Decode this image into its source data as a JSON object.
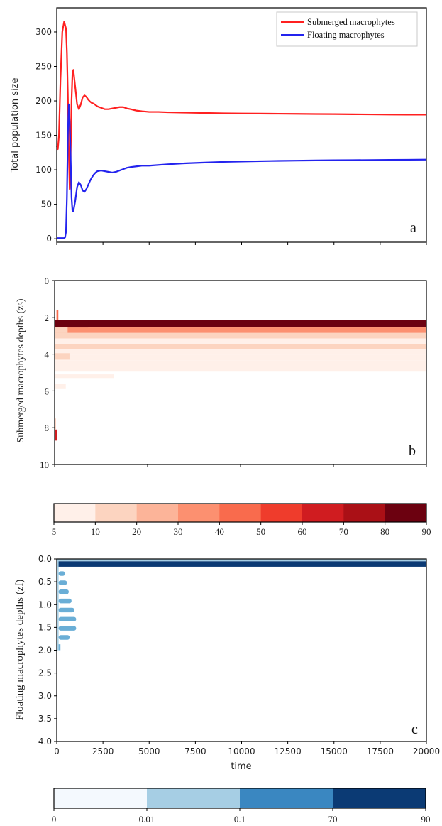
{
  "chart_data": [
    {
      "id": "a",
      "type": "line",
      "panel_label": "a",
      "ylabel": "Total population size",
      "ylim": [
        -5,
        335
      ],
      "yticks": [
        0,
        50,
        100,
        150,
        200,
        250,
        300
      ],
      "xlim": [
        0,
        20000
      ],
      "xticks_unlabeled": [
        0,
        2500,
        5000,
        7500,
        10000,
        12500,
        15000,
        17500,
        20000
      ],
      "legend_position": "top-right",
      "series": [
        {
          "name": "Submerged macrophytes",
          "color": "#ff2020",
          "x": [
            0,
            60,
            120,
            200,
            300,
            400,
            500,
            550,
            600,
            650,
            700,
            750,
            800,
            850,
            900,
            1000,
            1100,
            1200,
            1300,
            1400,
            1500,
            1600,
            1700,
            1800,
            1900,
            2000,
            2100,
            2200,
            2400,
            2600,
            2800,
            3000,
            3200,
            3400,
            3600,
            3800,
            4000,
            4300,
            4600,
            5000,
            5500,
            6000,
            7000,
            8000,
            9000,
            10000,
            11000,
            12000,
            13000,
            14000,
            15000,
            16000,
            17000,
            18000,
            19000,
            20000
          ],
          "y": [
            135,
            130,
            150,
            230,
            300,
            315,
            305,
            270,
            210,
            130,
            72,
            120,
            200,
            240,
            245,
            220,
            195,
            188,
            195,
            205,
            208,
            206,
            202,
            199,
            197,
            196,
            194,
            192,
            190,
            188,
            188,
            189,
            190,
            191,
            191,
            189,
            188,
            186,
            185,
            184,
            184,
            183.5,
            183,
            182.5,
            182,
            181.8,
            181.6,
            181.4,
            181.2,
            181,
            180.8,
            180.6,
            180.4,
            180.2,
            180.1,
            180
          ]
        },
        {
          "name": "Floating macrophytes",
          "color": "#2323ee",
          "x": [
            0,
            200,
            400,
            450,
            500,
            550,
            600,
            650,
            700,
            750,
            800,
            850,
            900,
            1000,
            1100,
            1200,
            1300,
            1400,
            1500,
            1600,
            1700,
            1800,
            1900,
            2000,
            2100,
            2200,
            2400,
            2600,
            2800,
            3000,
            3200,
            3400,
            3600,
            3800,
            4000,
            4300,
            4600,
            5000,
            6000,
            7000,
            8000,
            9000,
            10000,
            11000,
            12000,
            13000,
            14000,
            15000,
            16000,
            17000,
            18000,
            19000,
            20000
          ],
          "y": [
            1,
            1,
            1,
            2,
            10,
            60,
            150,
            195,
            170,
            120,
            60,
            40,
            40,
            55,
            75,
            82,
            78,
            70,
            68,
            72,
            78,
            84,
            89,
            93,
            96,
            98,
            99,
            98,
            97,
            96,
            97,
            99,
            101,
            103,
            104,
            105,
            106,
            106,
            108,
            109.5,
            110.5,
            111.5,
            112,
            112.5,
            113,
            113.3,
            113.6,
            113.9,
            114,
            114.2,
            114.4,
            114.6,
            114.8
          ]
        }
      ]
    },
    {
      "id": "b",
      "type": "heatmap",
      "panel_label": "b",
      "ylabel": "Submerged macrophytes depths (zs)",
      "ylim": [
        10,
        0
      ],
      "yticks": [
        0,
        2,
        4,
        6,
        8,
        10
      ],
      "xlim": [
        0,
        20000
      ],
      "xticks_unlabeled": [
        0,
        2500,
        5000,
        7500,
        10000,
        12500,
        15000,
        17500,
        20000
      ],
      "colormap": "Reds",
      "bands": [
        {
          "z0": 2.15,
          "z1": 2.55,
          "x0": 0,
          "x1": 20000,
          "value": 88
        },
        {
          "z0": 2.55,
          "z1": 2.85,
          "x0": 0,
          "x1": 20000,
          "value": 36
        },
        {
          "z0": 2.85,
          "z1": 3.15,
          "x0": 0,
          "x1": 20000,
          "value": 11
        },
        {
          "z0": 3.15,
          "z1": 3.45,
          "x0": 0,
          "x1": 20000,
          "value": 9
        },
        {
          "z0": 3.45,
          "z1": 3.75,
          "x0": 0,
          "x1": 20000,
          "value": 14
        },
        {
          "z0": 3.75,
          "z1": 4.05,
          "x0": 0,
          "x1": 20000,
          "value": 7.5
        },
        {
          "z0": 4.05,
          "z1": 4.35,
          "x0": 0,
          "x1": 20000,
          "value": 6
        },
        {
          "z0": 4.35,
          "z1": 4.65,
          "x0": 0,
          "x1": 20000,
          "value": 8
        },
        {
          "z0": 4.65,
          "z1": 4.95,
          "x0": 0,
          "x1": 20000,
          "value": 6.5
        },
        {
          "z0": 2.15,
          "z1": 2.55,
          "x0": 0,
          "x1": 1800,
          "value": 95
        },
        {
          "z0": 2.55,
          "z1": 2.85,
          "x0": 0,
          "x1": 700,
          "value": 18
        },
        {
          "z0": 3.95,
          "z1": 4.3,
          "x0": 0,
          "x1": 800,
          "value": 12
        },
        {
          "z0": 5.1,
          "z1": 5.3,
          "x0": 0,
          "x1": 3200,
          "value": 6
        },
        {
          "z0": 5.6,
          "z1": 5.9,
          "x0": 0,
          "x1": 600,
          "value": 6
        },
        {
          "z0": 1.6,
          "z1": 2.15,
          "x0": 100,
          "x1": 200,
          "value": 40
        },
        {
          "z0": 8.1,
          "z1": 8.7,
          "x0": 0,
          "x1": 120,
          "value": 68
        },
        {
          "z0": 7.5,
          "z1": 8.1,
          "x0": 0,
          "x1": 60,
          "value": 20
        }
      ]
    },
    {
      "id": "c",
      "type": "heatmap",
      "panel_label": "c",
      "ylabel": "Floating macrophytes depths (zf)",
      "xlabel": "time",
      "ylim": [
        4.0,
        0.0
      ],
      "yticks": [
        0.0,
        0.5,
        1.0,
        1.5,
        2.0,
        2.5,
        3.0,
        3.5,
        4.0
      ],
      "ytick_labels": [
        "0.0",
        "0.5",
        "1.0",
        "1.5",
        "2.0",
        "2.5",
        "3.0",
        "3.5",
        "4.0"
      ],
      "xlim": [
        0,
        20000
      ],
      "xticks": [
        0,
        2500,
        5000,
        7500,
        10000,
        12500,
        15000,
        17500,
        20000
      ],
      "colormap": "Blues",
      "bands": [
        {
          "z0": 0.05,
          "z1": 0.17,
          "x0": 0,
          "x1": 20000,
          "value": 80
        },
        {
          "z0": 0.0,
          "z1": 0.05,
          "x0": 0,
          "x1": 20000,
          "value": 0.05
        },
        {
          "z0": 0.27,
          "z1": 0.37,
          "x0": 100,
          "x1": 450,
          "value": 0.05
        },
        {
          "z0": 0.47,
          "z1": 0.57,
          "x0": 100,
          "x1": 550,
          "value": 0.05
        },
        {
          "z0": 0.67,
          "z1": 0.77,
          "x0": 100,
          "x1": 650,
          "value": 0.05
        },
        {
          "z0": 0.87,
          "z1": 0.97,
          "x0": 100,
          "x1": 800,
          "value": 0.05
        },
        {
          "z0": 1.07,
          "z1": 1.17,
          "x0": 100,
          "x1": 950,
          "value": 0.05
        },
        {
          "z0": 1.27,
          "z1": 1.37,
          "x0": 100,
          "x1": 1050,
          "value": 0.05
        },
        {
          "z0": 1.47,
          "z1": 1.57,
          "x0": 100,
          "x1": 1050,
          "value": 0.05
        },
        {
          "z0": 1.67,
          "z1": 1.77,
          "x0": 100,
          "x1": 700,
          "value": 0.05
        },
        {
          "z0": 1.87,
          "z1": 2.0,
          "x0": 100,
          "x1": 200,
          "value": 0.05
        },
        {
          "z0": 0.0,
          "z1": 2.0,
          "x0": 40,
          "x1": 100,
          "value": 0.05
        }
      ]
    }
  ],
  "colorbars": [
    {
      "id": "reds",
      "tick_labels": [
        "5",
        "10",
        "20",
        "30",
        "40",
        "50",
        "60",
        "70",
        "80",
        "90"
      ],
      "colors": [
        "#fff0e9",
        "#fcd4c0",
        "#fcb499",
        "#fc9070",
        "#f96b4d",
        "#ef3c2c",
        "#d01c20",
        "#aa1016",
        "#6c0110"
      ]
    },
    {
      "id": "blues",
      "tick_labels": [
        "0",
        "0.01",
        "0.1",
        "70",
        "90"
      ],
      "colors": [
        "#f4f9fe",
        "#a6cee4",
        "#3a87c1",
        "#0b3a74"
      ]
    }
  ]
}
